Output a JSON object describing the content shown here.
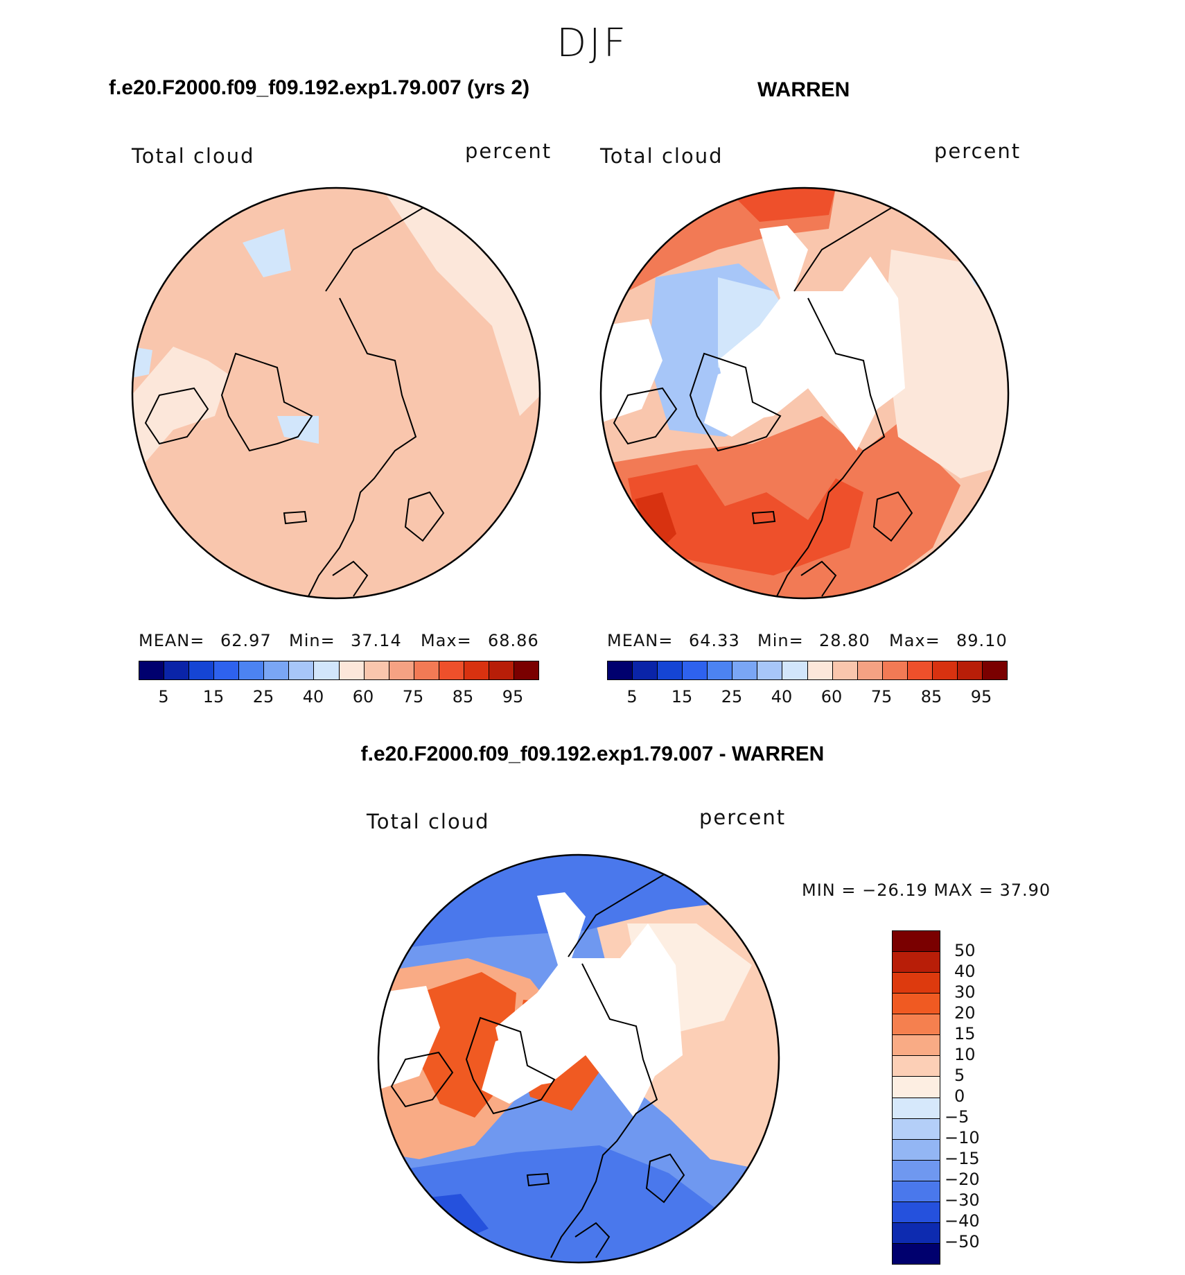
{
  "figure": {
    "season": "DJF"
  },
  "chart_data": [
    {
      "type": "heatmap",
      "title": "f.e20.F2000.f09_f09.192.exp1.79.007 (yrs 2)",
      "variable": "Total cloud",
      "units": "percent",
      "projection": "north-polar-stereographic",
      "stats": {
        "mean_label": "MEAN=",
        "mean": "62.97",
        "min_label": "Min=",
        "min": "37.14",
        "max_label": "Max=",
        "max": "68.86"
      },
      "levels": [
        5,
        10,
        15,
        20,
        25,
        30,
        40,
        50,
        60,
        70,
        75,
        80,
        85,
        90,
        95
      ],
      "tick_labels": [
        "5",
        "15",
        "25",
        "40",
        "60",
        "75",
        "85",
        "95"
      ],
      "colors": [
        "#00006e",
        "#0a24a8",
        "#1545d4",
        "#2e62ee",
        "#4c83f2",
        "#7aa6f5",
        "#a7c6f8",
        "#d2e6fb",
        "#fce7da",
        "#f9c6ad",
        "#f5a283",
        "#f27a55",
        "#ee502b",
        "#d83210",
        "#b81e08",
        "#7a0000"
      ]
    },
    {
      "type": "heatmap",
      "title": "WARREN",
      "variable": "Total cloud",
      "units": "percent",
      "projection": "north-polar-stereographic",
      "stats": {
        "mean_label": "MEAN=",
        "mean": "64.33",
        "min_label": "Min=",
        "min": "28.80",
        "max_label": "Max=",
        "max": "89.10"
      },
      "levels": [
        5,
        10,
        15,
        20,
        25,
        30,
        40,
        50,
        60,
        70,
        75,
        80,
        85,
        90,
        95
      ],
      "tick_labels": [
        "5",
        "15",
        "25",
        "40",
        "60",
        "75",
        "85",
        "95"
      ],
      "colors": [
        "#00006e",
        "#0a24a8",
        "#1545d4",
        "#2e62ee",
        "#4c83f2",
        "#7aa6f5",
        "#a7c6f8",
        "#d2e6fb",
        "#fce7da",
        "#f9c6ad",
        "#f5a283",
        "#f27a55",
        "#ee502b",
        "#d83210",
        "#b81e08",
        "#7a0000"
      ]
    },
    {
      "type": "heatmap",
      "title": "f.e20.F2000.f09_f09.192.exp1.79.007 - WARREN",
      "variable": "Total cloud",
      "units": "percent",
      "projection": "north-polar-stereographic",
      "stats_text": "MIN = −26.19 MAX =   37.90",
      "stats": {
        "min": -26.19,
        "max": 37.9
      },
      "levels": [
        -50,
        -40,
        -30,
        -20,
        -15,
        -10,
        -5,
        0,
        5,
        10,
        15,
        20,
        30,
        40,
        50
      ],
      "tick_labels": [
        "50",
        "40",
        "30",
        "20",
        "15",
        "10",
        "5",
        "0",
        "−5",
        "−10",
        "−15",
        "−20",
        "−30",
        "−40",
        "−50"
      ],
      "colors": [
        "#7a0000",
        "#b81e08",
        "#dd3a0e",
        "#f05a22",
        "#f5804f",
        "#f9ab85",
        "#fccfb6",
        "#fdeee2",
        "#d6e8fb",
        "#b4cff8",
        "#93b6f4",
        "#6f98f0",
        "#4a78ec",
        "#2551dd",
        "#0d2bb0",
        "#00006e"
      ]
    }
  ]
}
